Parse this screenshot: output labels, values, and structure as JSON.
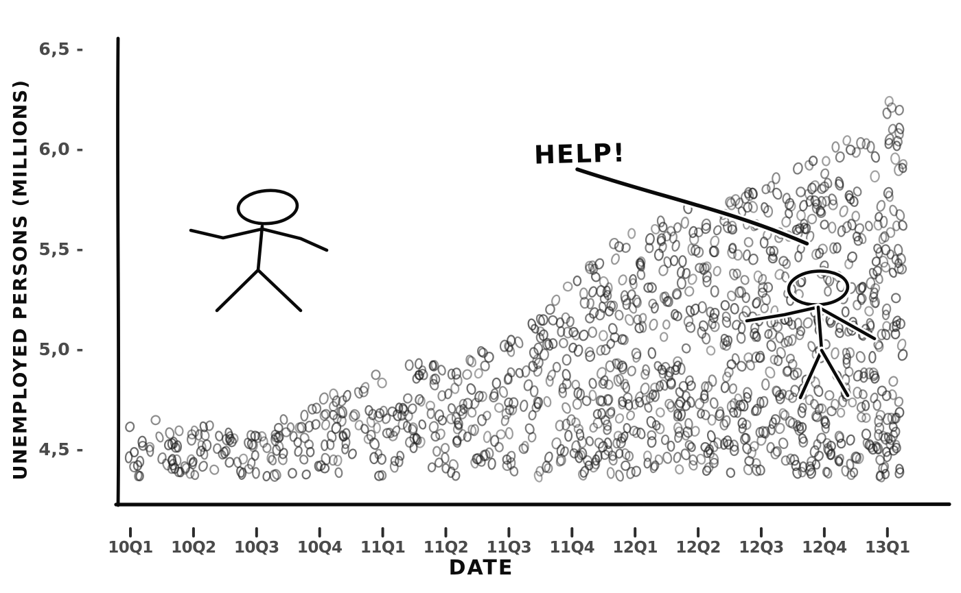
{
  "chart_data": {
    "type": "scatter",
    "style": "xkcd-hand-drawn, dense jittered strip of open ring glyphs forming a rising wedge",
    "title": "",
    "xlabel": "DATE",
    "ylabel": "UNEMPLOYED PERSONS (MILLIONS)",
    "x_tick_labels": [
      "10Q1",
      "10Q2",
      "10Q3",
      "10Q4",
      "11Q1",
      "11Q2",
      "11Q3",
      "11Q4",
      "12Q1",
      "12Q2",
      "12Q3",
      "12Q4",
      "13Q1"
    ],
    "y_tick_labels": [
      "6,5",
      "6,0",
      "5,5",
      "5,0",
      "4,5"
    ],
    "y_tick_values": [
      6.5,
      6.0,
      5.5,
      5.0,
      4.5
    ],
    "y_tick_suffix": "-",
    "ylim": [
      4.2,
      6.6
    ],
    "x_range_ticks": [
      -0.06,
      12.25
    ],
    "grid": "off",
    "legend": "none",
    "y_baseline": 4.38,
    "upper_envelope": [
      [
        -0.06,
        4.6
      ],
      [
        0,
        4.62
      ],
      [
        0.5,
        4.66
      ],
      [
        1,
        4.64
      ],
      [
        1.5,
        4.61
      ],
      [
        2,
        4.62
      ],
      [
        2.5,
        4.67
      ],
      [
        3,
        4.75
      ],
      [
        3.5,
        4.82
      ],
      [
        4,
        4.89
      ],
      [
        4.5,
        4.95
      ],
      [
        5,
        4.93
      ],
      [
        5.5,
        4.99
      ],
      [
        6,
        5.04
      ],
      [
        6.5,
        5.18
      ],
      [
        7,
        5.4
      ],
      [
        7.5,
        5.5
      ],
      [
        8,
        5.6
      ],
      [
        8.5,
        5.68
      ],
      [
        9,
        5.73
      ],
      [
        9.5,
        5.78
      ],
      [
        10,
        5.82
      ],
      [
        10.5,
        5.9
      ],
      [
        11,
        5.98
      ],
      [
        11.5,
        6.08
      ],
      [
        12,
        6.24
      ],
      [
        12.25,
        6.3
      ]
    ],
    "point_count": 1200,
    "point_style": {
      "shape": "open-ellipse-ring",
      "stroke_color": "#1e1e1e",
      "typical_alpha": 0.5
    },
    "annotations": [
      {
        "text": "HELP!",
        "at_tick": 6.8,
        "at_value": 6.05,
        "line_to": {
          "tick": 10.8,
          "value": 5.42
        },
        "color": "#070707"
      }
    ],
    "drawings": [
      {
        "name": "standing-stick-figure",
        "at_tick": 2.1,
        "at_value": 5.55
      },
      {
        "name": "drowning-stick-figure",
        "at_tick": 10.9,
        "at_value": 5.3
      }
    ]
  }
}
